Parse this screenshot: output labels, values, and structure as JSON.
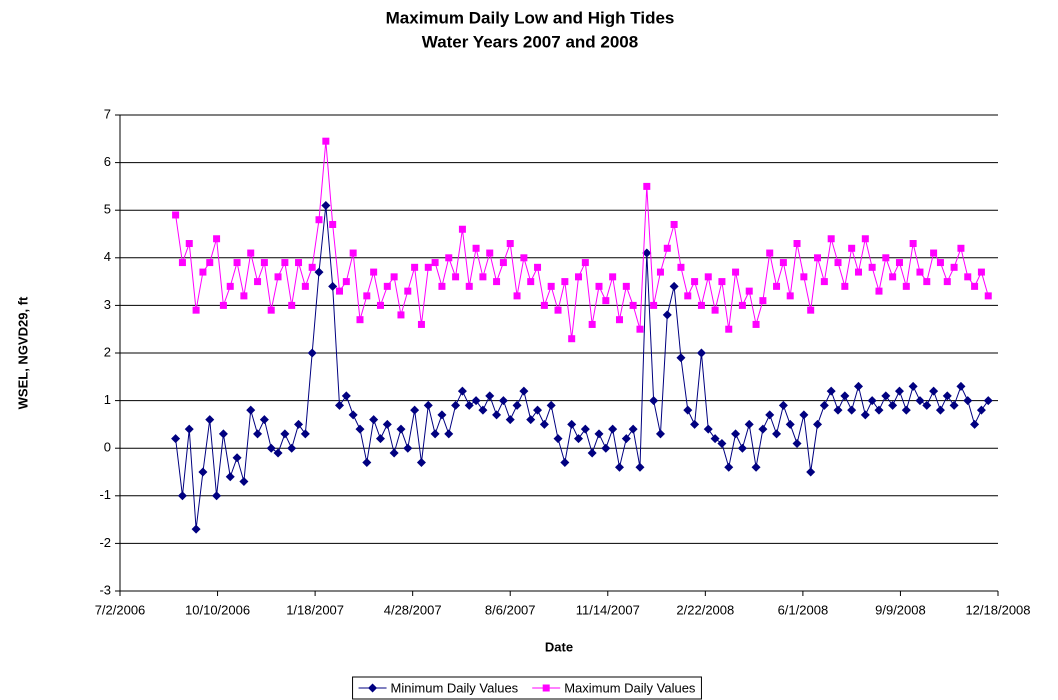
{
  "chart_data": {
    "type": "line",
    "title": "Maximum Daily Low and High Tides",
    "subtitle": "Water Years 2007 and 2008",
    "x_label": "Date",
    "y_label": "WSEL, NGVD29, ft",
    "x": [
      "8/28/2006",
      "9/4/2006",
      "9/11/2006",
      "9/18/2006",
      "9/25/2006",
      "10/2/2006",
      "10/9/2006",
      "10/16/2006",
      "10/23/2006",
      "10/30/2006",
      "11/6/2006",
      "11/13/2006",
      "11/20/2006",
      "11/27/2006",
      "12/4/2006",
      "12/11/2006",
      "12/18/2006",
      "12/25/2006",
      "1/1/2007",
      "1/8/2007",
      "1/15/2007",
      "1/22/2007",
      "1/29/2007",
      "2/5/2007",
      "2/12/2007",
      "2/19/2007",
      "2/26/2007",
      "3/5/2007",
      "3/12/2007",
      "3/19/2007",
      "3/26/2007",
      "4/2/2007",
      "4/9/2007",
      "4/16/2007",
      "4/23/2007",
      "4/30/2007",
      "5/7/2007",
      "5/14/2007",
      "5/21/2007",
      "5/28/2007",
      "6/4/2007",
      "6/11/2007",
      "6/18/2007",
      "6/25/2007",
      "7/2/2007",
      "7/9/2007",
      "7/16/2007",
      "7/23/2007",
      "7/30/2007",
      "8/6/2007",
      "8/13/2007",
      "8/20/2007",
      "8/27/2007",
      "9/3/2007",
      "9/10/2007",
      "9/17/2007",
      "9/24/2007",
      "10/1/2007",
      "10/8/2007",
      "10/15/2007",
      "10/22/2007",
      "10/29/2007",
      "11/5/2007",
      "11/12/2007",
      "11/19/2007",
      "11/26/2007",
      "12/3/2007",
      "12/10/2007",
      "12/17/2007",
      "12/24/2007",
      "12/31/2007",
      "1/7/2008",
      "1/14/2008",
      "1/21/2008",
      "1/28/2008",
      "2/4/2008",
      "2/11/2008",
      "2/18/2008",
      "2/25/2008",
      "3/3/2008",
      "3/10/2008",
      "3/17/2008",
      "3/24/2008",
      "3/31/2008",
      "4/7/2008",
      "4/14/2008",
      "4/21/2008",
      "4/28/2008",
      "5/5/2008",
      "5/12/2008",
      "5/19/2008",
      "5/26/2008",
      "6/2/2008",
      "6/9/2008",
      "6/16/2008",
      "6/23/2008",
      "6/30/2008",
      "7/7/2008",
      "7/14/2008",
      "7/21/2008",
      "7/28/2008",
      "8/4/2008",
      "8/11/2008",
      "8/18/2008",
      "8/25/2008",
      "9/1/2008",
      "9/8/2008",
      "9/15/2008",
      "9/22/2008",
      "9/29/2008",
      "10/6/2008",
      "10/13/2008",
      "10/20/2008",
      "10/27/2008",
      "11/3/2008",
      "11/10/2008",
      "11/17/2008",
      "11/24/2008",
      "12/1/2008",
      "12/8/2008"
    ],
    "series": [
      {
        "name": "Minimum Daily Values",
        "color": "#000080",
        "marker": "diamond",
        "values": [
          0.2,
          -1.0,
          0.4,
          -1.7,
          -0.5,
          0.6,
          -1.0,
          0.3,
          -0.6,
          -0.2,
          -0.7,
          0.8,
          0.3,
          0.6,
          0.0,
          -0.1,
          0.3,
          0.0,
          0.5,
          0.3,
          2.0,
          3.7,
          5.1,
          3.4,
          0.9,
          1.1,
          0.7,
          0.4,
          -0.3,
          0.6,
          0.2,
          0.5,
          -0.1,
          0.4,
          0.0,
          0.8,
          -0.3,
          0.9,
          0.3,
          0.7,
          0.3,
          0.9,
          1.2,
          0.9,
          1.0,
          0.8,
          1.1,
          0.7,
          1.0,
          0.6,
          0.9,
          1.2,
          0.6,
          0.8,
          0.5,
          0.9,
          0.2,
          -0.3,
          0.5,
          0.2,
          0.4,
          -0.1,
          0.3,
          0.0,
          0.4,
          -0.4,
          0.2,
          0.4,
          -0.4,
          4.1,
          1.0,
          0.3,
          2.8,
          3.4,
          1.9,
          0.8,
          0.5,
          2.0,
          0.4,
          0.2,
          0.1,
          -0.4,
          0.3,
          0.0,
          0.5,
          -0.4,
          0.4,
          0.7,
          0.3,
          0.9,
          0.5,
          0.1,
          0.7,
          -0.5,
          0.5,
          0.9,
          1.2,
          0.8,
          1.1,
          0.8,
          1.3,
          0.7,
          1.0,
          0.8,
          1.1,
          0.9,
          1.2,
          0.8,
          1.3,
          1.0,
          0.9,
          1.2,
          0.8,
          1.1,
          0.9,
          1.3,
          1.0,
          0.5,
          0.8,
          1.0
        ]
      },
      {
        "name": "Maximum Daily Values",
        "color": "#FF00FF",
        "marker": "square",
        "values": [
          4.9,
          3.9,
          4.3,
          2.9,
          3.7,
          3.9,
          4.4,
          3.0,
          3.4,
          3.9,
          3.2,
          4.1,
          3.5,
          3.9,
          2.9,
          3.6,
          3.9,
          3.0,
          3.9,
          3.4,
          3.8,
          4.8,
          6.45,
          4.7,
          3.3,
          3.5,
          4.1,
          2.7,
          3.2,
          3.7,
          3.0,
          3.4,
          3.6,
          2.8,
          3.3,
          3.8,
          2.6,
          3.8,
          3.9,
          3.4,
          4.0,
          3.6,
          4.6,
          3.4,
          4.2,
          3.6,
          4.1,
          3.5,
          3.9,
          4.3,
          3.2,
          4.0,
          3.5,
          3.8,
          3.0,
          3.4,
          2.9,
          3.5,
          2.3,
          3.6,
          3.9,
          2.6,
          3.4,
          3.1,
          3.6,
          2.7,
          3.4,
          3.0,
          2.5,
          5.5,
          3.0,
          3.7,
          4.2,
          4.7,
          3.8,
          3.2,
          3.5,
          3.0,
          3.6,
          2.9,
          3.5,
          2.5,
          3.7,
          3.0,
          3.3,
          2.6,
          3.1,
          4.1,
          3.4,
          3.9,
          3.2,
          4.3,
          3.6,
          2.9,
          4.0,
          3.5,
          4.4,
          3.9,
          3.4,
          4.2,
          3.7,
          4.4,
          3.8,
          3.3,
          4.0,
          3.6,
          3.9,
          3.4,
          4.3,
          3.7,
          3.5,
          4.1,
          3.9,
          3.5,
          3.8,
          4.2,
          3.6,
          3.4,
          3.7,
          3.2
        ]
      }
    ],
    "xlim": [
      38900,
      39800
    ],
    "xticks": [
      {
        "value": 38900,
        "label": "7/2/2006"
      },
      {
        "value": 39000,
        "label": "10/10/2006"
      },
      {
        "value": 39100,
        "label": "1/18/2007"
      },
      {
        "value": 39200,
        "label": "4/28/2007"
      },
      {
        "value": 39300,
        "label": "8/6/2007"
      },
      {
        "value": 39400,
        "label": "11/14/2007"
      },
      {
        "value": 39500,
        "label": "2/22/2008"
      },
      {
        "value": 39600,
        "label": "6/1/2008"
      },
      {
        "value": 39700,
        "label": "9/9/2008"
      },
      {
        "value": 39800,
        "label": "12/18/2008"
      }
    ],
    "ylim": [
      -3,
      7
    ],
    "yticks": [
      -3,
      -2,
      -1,
      0,
      1,
      2,
      3,
      4,
      5,
      6,
      7
    ],
    "grid": true,
    "legend_position": "bottom"
  }
}
